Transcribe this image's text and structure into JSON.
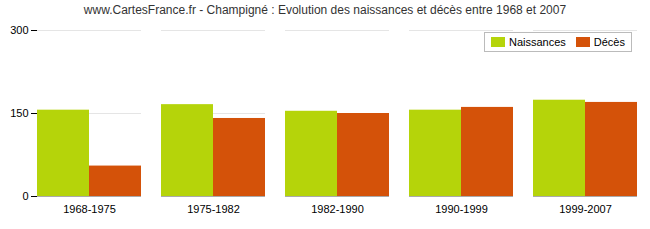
{
  "chart_data": {
    "type": "bar",
    "title": "www.CartesFrance.fr - Champigné : Evolution des naissances et décès entre 1968 et 2007",
    "categories": [
      "1968-1975",
      "1975-1982",
      "1982-1990",
      "1990-1999",
      "1999-2007"
    ],
    "series": [
      {
        "name": "Naissances",
        "color": "#b5d40a",
        "values": [
          156,
          166,
          154,
          156,
          174
        ]
      },
      {
        "name": "Décès",
        "color": "#d45209",
        "values": [
          55,
          141,
          150,
          161,
          170
        ]
      }
    ],
    "ylim": [
      0,
      300
    ],
    "yticks": [
      0,
      150,
      300
    ],
    "grid": true,
    "legend": "upper right"
  }
}
